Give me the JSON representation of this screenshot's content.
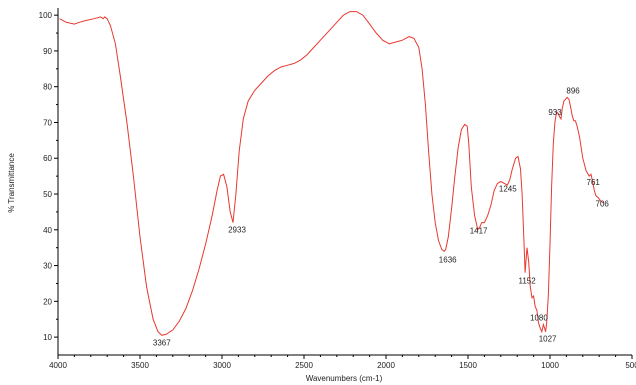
{
  "chart_data": {
    "type": "line",
    "title": "",
    "xlabel": "Wavenumbers (cm-1)",
    "ylabel": "% Transmittance",
    "xlim": [
      4000,
      500
    ],
    "ylim": [
      5,
      102
    ],
    "x_reversed": true,
    "grid": false,
    "legend": "none",
    "xticks": [
      4000,
      3500,
      3000,
      2500,
      2000,
      1500,
      1000,
      500
    ],
    "yticks": [
      10,
      20,
      30,
      40,
      50,
      60,
      70,
      80,
      90,
      100
    ],
    "series": [
      {
        "color": "#e8382f",
        "x": [
          3990,
          3950,
          3900,
          3870,
          3830,
          3780,
          3740,
          3725,
          3715,
          3700,
          3680,
          3650,
          3620,
          3580,
          3540,
          3500,
          3460,
          3420,
          3390,
          3367,
          3340,
          3300,
          3260,
          3220,
          3180,
          3140,
          3100,
          3060,
          3030,
          3010,
          2990,
          2970,
          2950,
          2933,
          2915,
          2895,
          2870,
          2840,
          2800,
          2760,
          2720,
          2680,
          2640,
          2600,
          2560,
          2520,
          2480,
          2440,
          2400,
          2350,
          2300,
          2260,
          2220,
          2180,
          2140,
          2100,
          2060,
          2020,
          1980,
          1940,
          1900,
          1860,
          1830,
          1800,
          1780,
          1760,
          1740,
          1720,
          1700,
          1680,
          1660,
          1645,
          1636,
          1620,
          1600,
          1580,
          1560,
          1540,
          1520,
          1505,
          1495,
          1480,
          1460,
          1440,
          1425,
          1417,
          1400,
          1380,
          1360,
          1340,
          1320,
          1300,
          1280,
          1260,
          1245,
          1230,
          1210,
          1195,
          1180,
          1170,
          1160,
          1152,
          1140,
          1130,
          1120,
          1110,
          1100,
          1090,
          1080,
          1070,
          1060,
          1050,
          1040,
          1033,
          1027,
          1020,
          1010,
          1000,
          990,
          980,
          970,
          960,
          950,
          940,
          933,
          925,
          915,
          905,
          896,
          885,
          875,
          865,
          855,
          845,
          835,
          820,
          800,
          780,
          761,
          750,
          740,
          730,
          720,
          706,
          690,
          675
        ],
        "y": [
          99,
          98,
          97.5,
          98,
          98.5,
          99,
          99.5,
          99,
          99.5,
          99,
          97,
          92,
          83,
          70,
          55,
          38,
          24,
          15,
          11.5,
          10.5,
          10.8,
          12,
          14.5,
          18,
          23,
          29,
          36,
          44,
          51,
          55,
          55.5,
          52,
          45,
          42,
          50,
          62,
          71,
          76,
          79,
          81,
          83,
          84.5,
          85.5,
          86,
          86.5,
          87.5,
          89,
          91,
          93,
          95.5,
          98,
          100,
          101,
          101,
          100,
          97.5,
          95,
          93,
          92,
          92.5,
          93,
          94,
          93.5,
          91,
          85,
          75,
          62,
          50,
          42,
          37,
          34.5,
          34,
          34.5,
          38,
          46,
          55,
          63,
          68,
          69.5,
          69,
          64,
          52,
          44,
          40,
          41,
          42,
          42,
          44,
          47,
          51,
          53,
          53.5,
          53,
          52.5,
          54,
          57,
          60,
          60.5,
          57,
          50,
          38,
          28,
          35,
          31,
          24,
          21,
          21.5,
          18.5,
          17.5,
          14,
          12.5,
          11.5,
          13.5,
          12.5,
          11.5,
          14,
          22,
          36,
          52,
          64,
          70,
          73,
          72.5,
          71.5,
          71,
          74,
          76,
          76.5,
          77,
          76.5,
          74.5,
          72,
          70.5,
          70.5,
          69,
          66,
          60,
          56.5,
          55,
          55.5,
          53.5,
          51,
          49.5,
          49,
          48,
          47.5
        ]
      }
    ],
    "annotations": [
      {
        "text": "3367",
        "x": 3367,
        "y": 10.5
      },
      {
        "text": "2933",
        "x": 2933,
        "y": 42
      },
      {
        "text": "1636",
        "x": 1636,
        "y": 34
      },
      {
        "text": "1417",
        "x": 1417,
        "y": 42
      },
      {
        "text": "1245",
        "x": 1245,
        "y": 53.5
      },
      {
        "text": "1152",
        "x": 1152,
        "y": 28
      },
      {
        "text": "1080",
        "x": 1080,
        "y": 17.5
      },
      {
        "text": "1027",
        "x": 1027,
        "y": 11.5
      },
      {
        "text": "933",
        "x": 933,
        "y": 71
      },
      {
        "text": "896",
        "x": 896,
        "y": 77
      },
      {
        "text": "761",
        "x": 761,
        "y": 55
      },
      {
        "text": "706",
        "x": 706,
        "y": 49
      }
    ]
  }
}
